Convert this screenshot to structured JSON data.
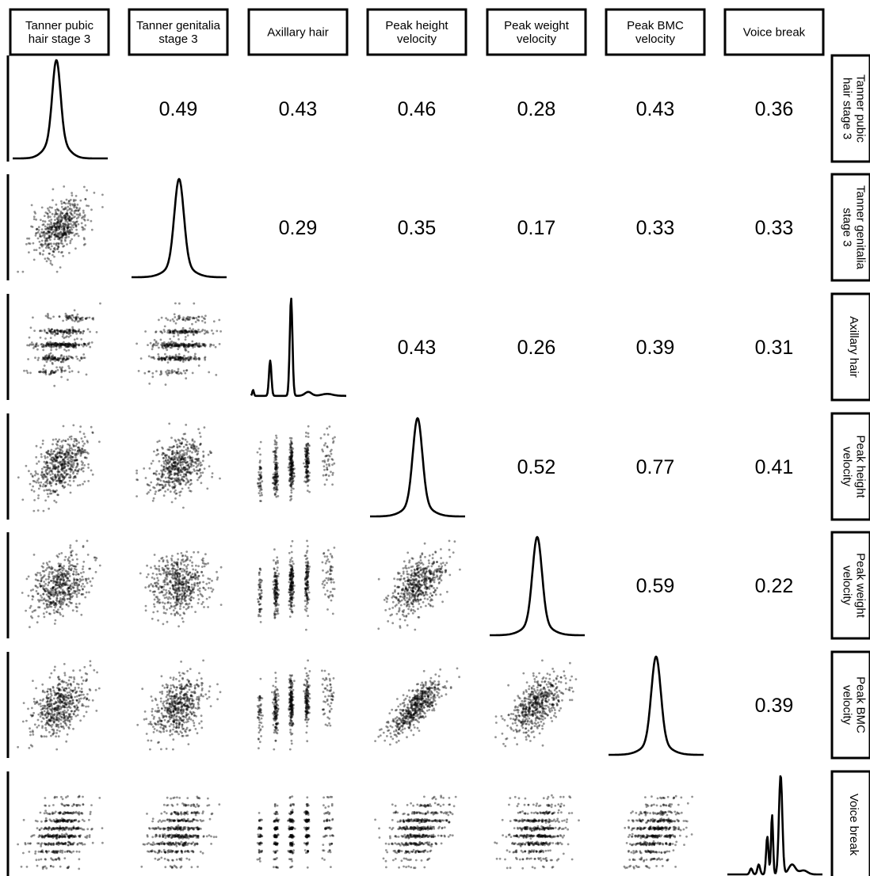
{
  "chart_data": {
    "type": "scatter-matrix",
    "variables": [
      "Tanner pubic hair stage 3",
      "Tanner genitalia stage 3",
      "Axillary hair",
      "Peak height velocity",
      "Peak weight velocity",
      "Peak BMC velocity",
      "Voice break"
    ],
    "column_labels": [
      [
        "Tanner pubic",
        "hair stage 3"
      ],
      [
        "Tanner genitalia",
        "stage 3"
      ],
      [
        "Axillary hair"
      ],
      [
        "Peak height",
        "velocity"
      ],
      [
        "Peak weight",
        "velocity"
      ],
      [
        "Peak BMC",
        "velocity"
      ],
      [
        "Voice break"
      ]
    ],
    "row_labels": [
      [
        "Tanner pubic",
        "hair stage 3"
      ],
      [
        "Tanner genitalia",
        "stage 3"
      ],
      [
        "Axillary hair"
      ],
      [
        "Peak height",
        "velocity"
      ],
      [
        "Peak weight",
        "velocity"
      ],
      [
        "Peak BMC",
        "velocity"
      ],
      [
        "Voice break"
      ]
    ],
    "correlations": [
      {
        "row": 0,
        "col": 1,
        "value": "0.49"
      },
      {
        "row": 0,
        "col": 2,
        "value": "0.43"
      },
      {
        "row": 0,
        "col": 3,
        "value": "0.46"
      },
      {
        "row": 0,
        "col": 4,
        "value": "0.28"
      },
      {
        "row": 0,
        "col": 5,
        "value": "0.43"
      },
      {
        "row": 0,
        "col": 6,
        "value": "0.36"
      },
      {
        "row": 1,
        "col": 2,
        "value": "0.29"
      },
      {
        "row": 1,
        "col": 3,
        "value": "0.35"
      },
      {
        "row": 1,
        "col": 4,
        "value": "0.17"
      },
      {
        "row": 1,
        "col": 5,
        "value": "0.33"
      },
      {
        "row": 1,
        "col": 6,
        "value": "0.33"
      },
      {
        "row": 2,
        "col": 3,
        "value": "0.43"
      },
      {
        "row": 2,
        "col": 4,
        "value": "0.26"
      },
      {
        "row": 2,
        "col": 5,
        "value": "0.39"
      },
      {
        "row": 2,
        "col": 6,
        "value": "0.31"
      },
      {
        "row": 3,
        "col": 4,
        "value": "0.52"
      },
      {
        "row": 3,
        "col": 5,
        "value": "0.77"
      },
      {
        "row": 3,
        "col": 6,
        "value": "0.41"
      },
      {
        "row": 4,
        "col": 5,
        "value": "0.59"
      },
      {
        "row": 4,
        "col": 6,
        "value": "0.22"
      },
      {
        "row": 5,
        "col": 6,
        "value": "0.39"
      }
    ],
    "diagonal": "density",
    "lower_triangle": "scatter",
    "upper_triangle": "correlation coefficient",
    "colors": {
      "ink": "#000000",
      "background": "#ffffff"
    }
  }
}
